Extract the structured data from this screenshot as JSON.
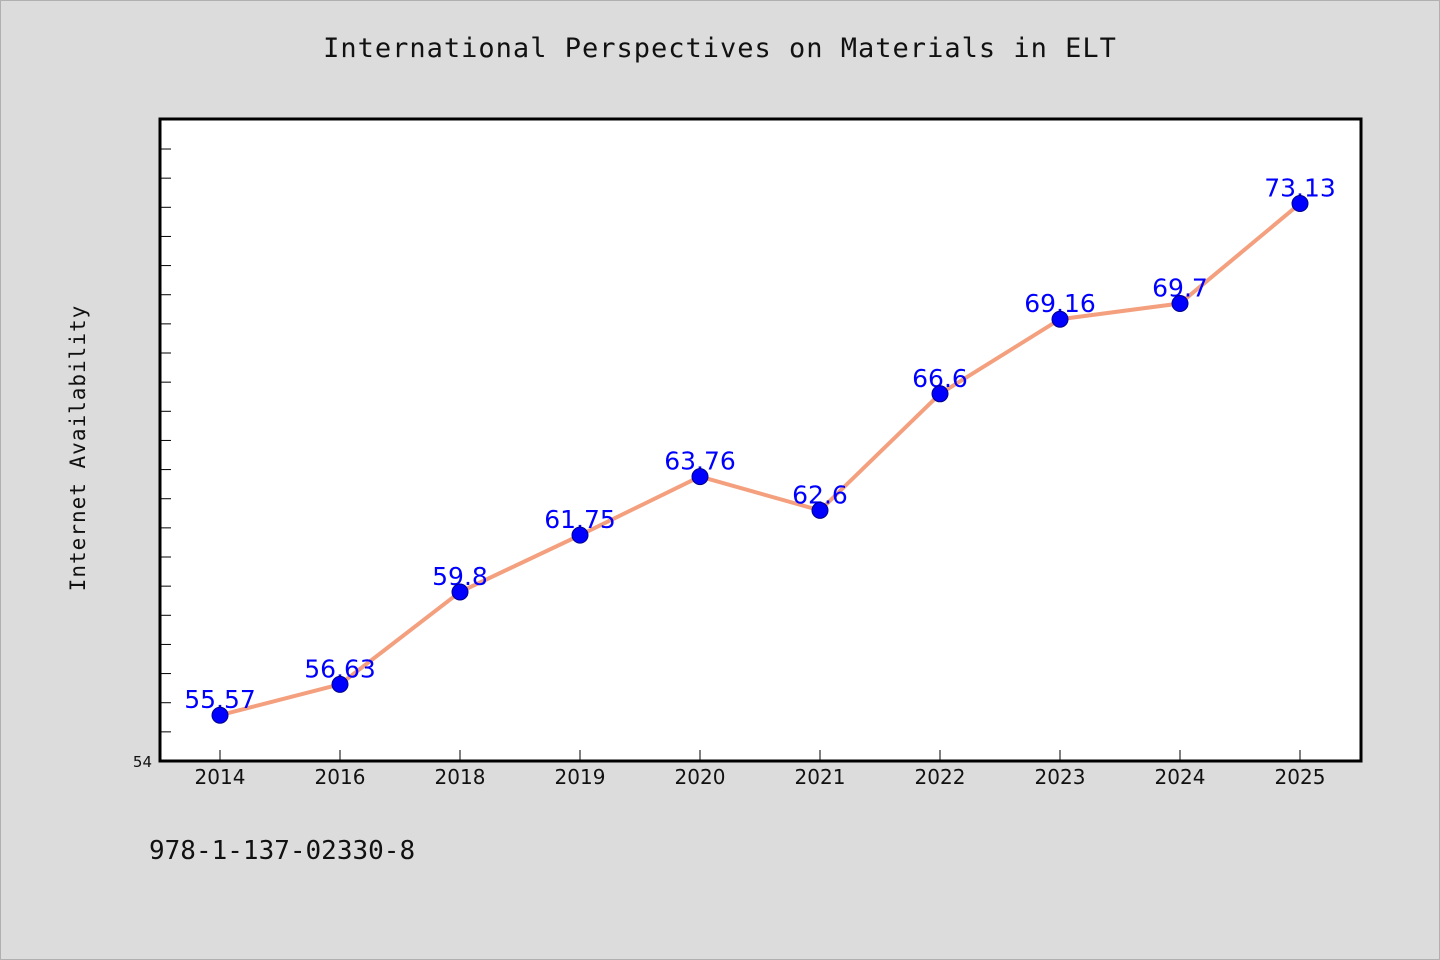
{
  "chart_data": {
    "type": "line",
    "title": "International Perspectives on Materials in ELT",
    "xlabel": "",
    "ylabel": "Internet Availability",
    "categories": [
      "2014",
      "2016",
      "2018",
      "2019",
      "2020",
      "2021",
      "2022",
      "2023",
      "2024",
      "2025"
    ],
    "series": [
      {
        "values": [
          55.57,
          56.63,
          59.8,
          61.75,
          63.76,
          62.6,
          66.6,
          69.16,
          69.7,
          73.13
        ],
        "data_labels": [
          "55.57",
          "56.63",
          "59.8",
          "61.75",
          "63.76",
          "62.6",
          "66.6",
          "69.16",
          "69.7",
          "73.13"
        ]
      }
    ],
    "ylim": [
      54,
      76
    ],
    "y_tick_label": "54",
    "grid": false,
    "legend": "none",
    "colors": {
      "line": "#f4a07e",
      "marker": "#0000ff",
      "data_label": "#0000ff",
      "plot_background": "#ffffff",
      "page_background": "#dcdcdc"
    }
  },
  "footer": {
    "isbn": "978-1-137-02330-8"
  }
}
